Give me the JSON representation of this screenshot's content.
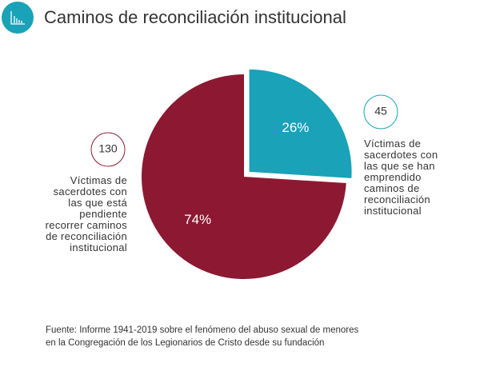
{
  "chart_data": {
    "type": "pie",
    "title": "Caminos de reconciliación institucional",
    "categories": [
      "Víctimas de sacerdotes con las que se han emprendido caminos de reconciliación institucional",
      "Víctimas de sacerdotes con las que está pendiente recorrer caminos de reconciliación institucional"
    ],
    "values": [
      26,
      74
    ],
    "value_labels": [
      "26%",
      "74%"
    ],
    "counts": [
      45,
      130
    ],
    "colors": [
      "#19a2b8",
      "#8c1931"
    ],
    "source": [
      "Fuente: Informe 1941-2019 sobre el fenómeno del abuso sexual de menores",
      "en la Congregación de los Legionarios de Cristo desde su fundación"
    ]
  }
}
